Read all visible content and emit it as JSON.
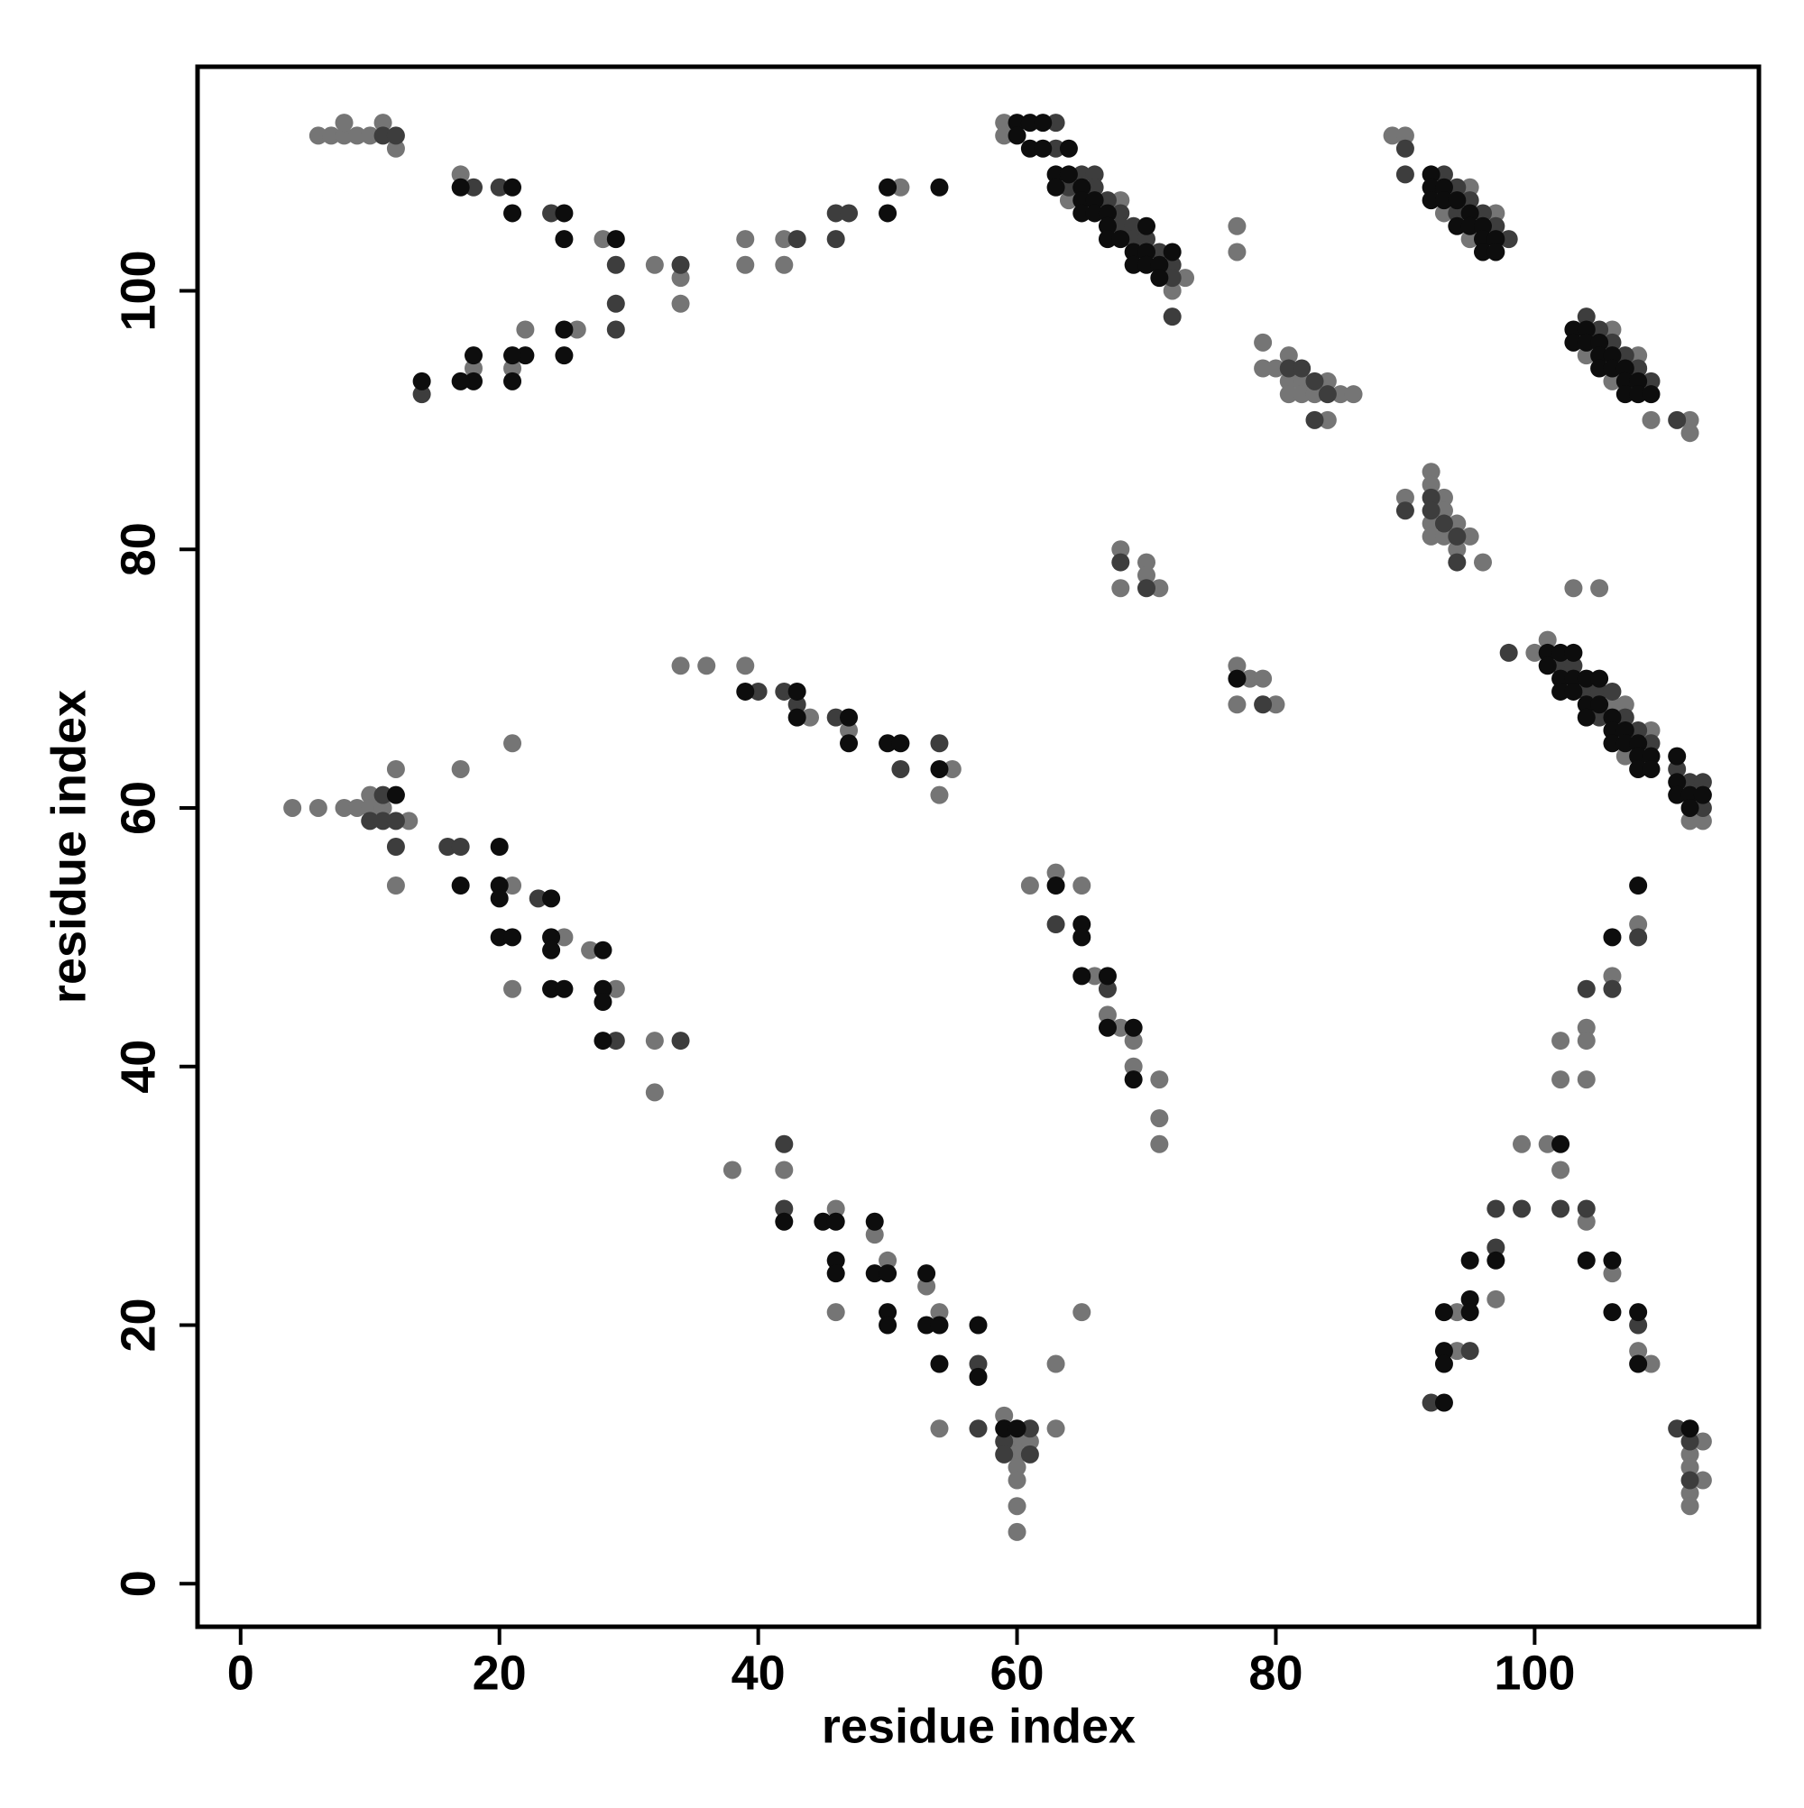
{
  "chart_data": {
    "type": "scatter",
    "xlabel": "residue index",
    "ylabel": "residue index",
    "xlim": [
      -3.33,
      117.33
    ],
    "ylim": [
      -3.33,
      117.33
    ],
    "xticks": [
      0,
      20,
      40,
      60,
      80,
      100
    ],
    "yticks": [
      0,
      20,
      40,
      60,
      80,
      100
    ],
    "series": [
      {
        "color": "#757575",
        "x": [
          6,
          7,
          8,
          9,
          10,
          8,
          11,
          12,
          17,
          28,
          32,
          34,
          34,
          26,
          22,
          21,
          18,
          39,
          39,
          42,
          42,
          51,
          59,
          59,
          64,
          68,
          72,
          73,
          77,
          77,
          79,
          79,
          80,
          81,
          81,
          81,
          82,
          82,
          83,
          84,
          84,
          85,
          86,
          89,
          90,
          93,
          95,
          95,
          97,
          104,
          106,
          106,
          108,
          109,
          112,
          112,
          90,
          92,
          92,
          92,
          92,
          93,
          93,
          93,
          94,
          94,
          95,
          96,
          68,
          68,
          70,
          70,
          71,
          77,
          77,
          78,
          79,
          80,
          100,
          101,
          106,
          107,
          107,
          109,
          112,
          113,
          103,
          105,
          34,
          36,
          39,
          44,
          47,
          55,
          54,
          4,
          6,
          8,
          9,
          10,
          10,
          11,
          12,
          13,
          12,
          17,
          21,
          21,
          21,
          25,
          27,
          29,
          32,
          32,
          61,
          63,
          65,
          66,
          67,
          68,
          69,
          69,
          71,
          71,
          71,
          38,
          42,
          46,
          46,
          49,
          50,
          53,
          54,
          54,
          59,
          60,
          60,
          60,
          60,
          60,
          60,
          61,
          63,
          63,
          65,
          94,
          94,
          97,
          99,
          101,
          102,
          102,
          102,
          104,
          104,
          104,
          104,
          106,
          106,
          108,
          108,
          109,
          112,
          112,
          112,
          112,
          113,
          113
        ],
        "values": [
          112,
          112,
          112,
          112,
          112,
          113,
          113,
          111,
          109,
          104,
          102,
          101,
          99,
          97,
          97,
          94,
          94,
          104,
          102,
          104,
          102,
          108,
          113,
          112,
          107,
          107,
          100,
          101,
          105,
          103,
          96,
          94,
          94,
          95,
          93,
          92,
          93,
          92,
          92,
          93,
          90,
          92,
          92,
          112,
          112,
          106,
          108,
          104,
          106,
          95,
          97,
          93,
          95,
          90,
          90,
          89,
          84,
          86,
          85,
          82,
          81,
          84,
          83,
          81,
          82,
          80,
          81,
          79,
          80,
          77,
          79,
          78,
          77,
          71,
          68,
          70,
          70,
          68,
          72,
          73,
          68,
          68,
          64,
          66,
          59,
          59,
          77,
          77,
          71,
          71,
          71,
          67,
          66,
          63,
          61,
          60,
          60,
          60,
          60,
          61,
          60,
          60,
          63,
          59,
          54,
          63,
          54,
          65,
          46,
          50,
          49,
          46,
          42,
          38,
          54,
          55,
          54,
          47,
          44,
          43,
          42,
          40,
          39,
          36,
          34,
          32,
          32,
          29,
          21,
          27,
          25,
          23,
          21,
          12,
          13,
          11,
          10,
          9,
          8,
          6,
          4,
          11,
          17,
          12,
          21,
          21,
          18,
          22,
          34,
          34,
          32,
          39,
          42,
          43,
          42,
          39,
          28,
          47,
          24,
          51,
          18,
          17,
          10,
          9,
          7,
          6,
          11,
          8
        ]
      },
      {
        "color": "#3d3d3d",
        "x": [
          11,
          12,
          18,
          20,
          24,
          29,
          34,
          29,
          29,
          14,
          43,
          46,
          46,
          47,
          63,
          63,
          64,
          65,
          66,
          66,
          67,
          68,
          68,
          69,
          69,
          70,
          71,
          72,
          72,
          72,
          81,
          82,
          83,
          83,
          84,
          90,
          90,
          93,
          94,
          94,
          95,
          96,
          97,
          98,
          104,
          105,
          106,
          107,
          108,
          109,
          111,
          90,
          92,
          92,
          93,
          94,
          94,
          68,
          70,
          79,
          98,
          102,
          103,
          104,
          105,
          105,
          106,
          107,
          108,
          109,
          111,
          112,
          113,
          113,
          40,
          42,
          43,
          46,
          51,
          54,
          10,
          11,
          11,
          12,
          12,
          16,
          17,
          23,
          29,
          34,
          63,
          67,
          42,
          42,
          57,
          57,
          59,
          59,
          61,
          61,
          92,
          95,
          97,
          97,
          99,
          102,
          104,
          104,
          106,
          108,
          108,
          111,
          112,
          112
        ],
        "values": [
          112,
          112,
          108,
          108,
          106,
          102,
          102,
          99,
          97,
          92,
          104,
          106,
          104,
          106,
          113,
          111,
          108,
          109,
          109,
          108,
          107,
          106,
          105,
          105,
          104,
          104,
          103,
          102,
          101,
          98,
          94,
          94,
          93,
          90,
          92,
          111,
          109,
          109,
          108,
          106,
          107,
          106,
          105,
          104,
          98,
          97,
          96,
          95,
          94,
          93,
          90,
          83,
          84,
          83,
          82,
          81,
          79,
          79,
          77,
          68,
          72,
          71,
          71,
          69,
          69,
          67,
          69,
          67,
          66,
          65,
          63,
          62,
          62,
          60,
          69,
          69,
          68,
          67,
          63,
          65,
          59,
          61,
          59,
          59,
          57,
          57,
          57,
          53,
          42,
          42,
          51,
          46,
          34,
          29,
          17,
          12,
          11,
          10,
          12,
          10,
          14,
          18,
          29,
          26,
          29,
          29,
          46,
          29,
          46,
          50,
          20,
          12,
          11,
          8
        ]
      },
      {
        "color": "#0d0d0d",
        "x": [
          17,
          21,
          21,
          25,
          25,
          29,
          25,
          25,
          22,
          21,
          21,
          18,
          18,
          17,
          14,
          50,
          50,
          54,
          60,
          60,
          61,
          61,
          62,
          62,
          64,
          63,
          63,
          64,
          65,
          65,
          65,
          66,
          66,
          67,
          67,
          67,
          68,
          69,
          69,
          70,
          70,
          70,
          71,
          71,
          72,
          92,
          92,
          92,
          93,
          93,
          94,
          94,
          95,
          95,
          96,
          96,
          96,
          97,
          97,
          103,
          103,
          104,
          104,
          105,
          105,
          105,
          106,
          106,
          107,
          107,
          107,
          108,
          108,
          109,
          77,
          101,
          101,
          102,
          102,
          102,
          103,
          103,
          103,
          104,
          104,
          104,
          105,
          105,
          106,
          106,
          106,
          107,
          107,
          108,
          108,
          108,
          109,
          109,
          111,
          111,
          111,
          112,
          112,
          113,
          39,
          43,
          43,
          47,
          47,
          50,
          51,
          54,
          12,
          17,
          20,
          20,
          20,
          20,
          21,
          24,
          24,
          24,
          24,
          25,
          28,
          28,
          28,
          28,
          63,
          65,
          65,
          65,
          67,
          67,
          69,
          69,
          42,
          45,
          46,
          46,
          46,
          49,
          49,
          50,
          50,
          50,
          53,
          53,
          54,
          54,
          57,
          57,
          59,
          60,
          93,
          93,
          93,
          93,
          95,
          95,
          95,
          97,
          102,
          104,
          106,
          106,
          106,
          108,
          108,
          108,
          112
        ],
        "values": [
          108,
          108,
          106,
          106,
          104,
          104,
          97,
          95,
          95,
          95,
          93,
          95,
          93,
          93,
          93,
          108,
          106,
          108,
          113,
          112,
          113,
          111,
          113,
          111,
          111,
          109,
          108,
          109,
          108,
          107,
          106,
          107,
          106,
          106,
          105,
          104,
          104,
          103,
          102,
          105,
          103,
          102,
          102,
          101,
          103,
          109,
          108,
          107,
          108,
          107,
          107,
          105,
          106,
          105,
          105,
          104,
          103,
          104,
          103,
          97,
          96,
          97,
          96,
          96,
          95,
          94,
          95,
          94,
          94,
          93,
          92,
          93,
          92,
          92,
          70,
          72,
          71,
          72,
          70,
          69,
          72,
          70,
          69,
          70,
          68,
          67,
          70,
          68,
          67,
          66,
          65,
          66,
          65,
          65,
          64,
          63,
          64,
          63,
          64,
          62,
          61,
          61,
          60,
          61,
          69,
          69,
          67,
          67,
          65,
          65,
          65,
          63,
          61,
          54,
          57,
          54,
          53,
          50,
          50,
          53,
          50,
          49,
          46,
          46,
          49,
          46,
          45,
          42,
          54,
          51,
          50,
          47,
          47,
          43,
          43,
          39,
          28,
          28,
          28,
          25,
          24,
          28,
          24,
          24,
          21,
          20,
          24,
          20,
          20,
          17,
          20,
          16,
          12,
          12,
          14,
          21,
          18,
          17,
          25,
          22,
          21,
          25,
          34,
          25,
          50,
          25,
          21,
          54,
          21,
          17,
          12
        ]
      }
    ]
  }
}
